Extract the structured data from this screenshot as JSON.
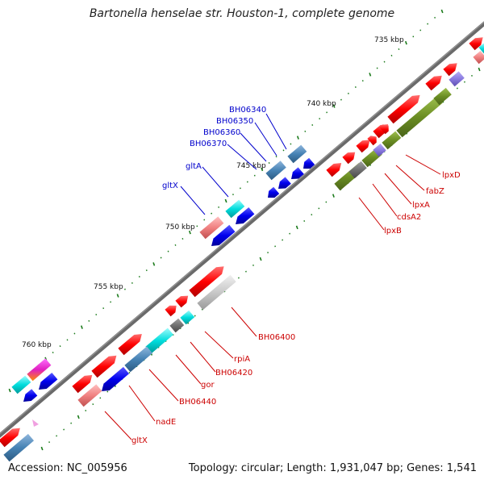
{
  "title": "Bartonella henselae str. Houston-1, complete genome",
  "footer": {
    "accession": "Accession: NC_005956",
    "summary": "Topology: circular; Length: 1,931,047 bp; Genes: 1,541"
  },
  "kbp_labels": [
    "735 kbp",
    "740 kbp",
    "745 kbp",
    "750 kbp",
    "755 kbp",
    "760 kbp"
  ],
  "gene_labels_blue": [
    "BH06340",
    "BH06350",
    "BH06360",
    "BH06370",
    "gltA",
    "gltX"
  ],
  "gene_labels_red": [
    "lpxD",
    "fabZ",
    "lpxA",
    "cdsA2",
    "lpxB",
    "BH06400",
    "rpiA",
    "BH06420",
    "gor",
    "BH06440",
    "nadE",
    "gltX"
  ],
  "colors": {
    "forward_cds": "#ff0000",
    "reverse_cds": "#0000ee",
    "steelblue": "#4682b4",
    "cyan": "#00dddd",
    "olive": "#6b8e23",
    "salmon": "#f08080",
    "grey": "#c0c0c0",
    "purple": "#8a7ae0",
    "blue_label": "#0000cc",
    "red_label": "#cc0000",
    "tick": "#1a7a1a"
  }
}
